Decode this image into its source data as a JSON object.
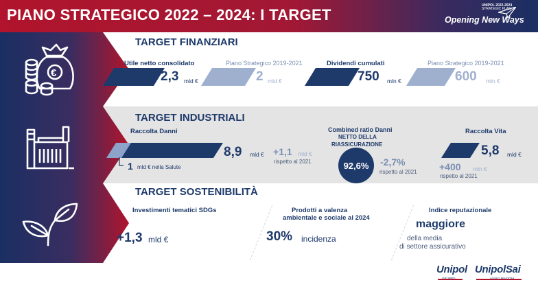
{
  "header": {
    "title": "PIANO STRATEGICO 2022 – 2024: I TARGET",
    "brand_small_1": "UNIPOL 2022-2024",
    "brand_small_2": "STRATEGIC PLAN",
    "brand_tagline": "Opening New Ways"
  },
  "finanziari": {
    "title": "TARGET FINANZIARI",
    "icon": "money-bag-icon",
    "utile_label": "Utile netto consolidato",
    "utile_value": "2,3",
    "utile_unit": "mld €",
    "utile_prev_label": "Piano Strategico 2019-2021",
    "utile_prev_value": "2",
    "utile_prev_unit": "mld €",
    "dividendi_label": "Dividendi cumulati",
    "dividendi_value": "750",
    "dividendi_unit": "mln €",
    "dividendi_prev_label": "Piano Strategico 2019-2021",
    "dividendi_prev_value": "600",
    "dividendi_prev_unit": "mln €"
  },
  "industriali": {
    "title": "TARGET INDUSTRIALI",
    "icon": "factory-icon",
    "danni_label": "Raccolta Danni",
    "danni_value": "8,9",
    "danni_unit": "mld €",
    "danni_delta": "+1,1",
    "danni_delta_unit": "mld €",
    "danni_delta_note": "rispetto al 2021",
    "salute_value": "1",
    "salute_unit": "mld € nella Salute",
    "cr_label_1": "Combined ratio Danni",
    "cr_label_2": "NETTO DELLA",
    "cr_label_3": "RIASSICURAZIONE",
    "cr_value": "92,6%",
    "cr_delta": "-2,7%",
    "cr_delta_note": "rispetto al 2021",
    "vita_label": "Raccolta Vita",
    "vita_value": "5,8",
    "vita_unit": "mld €",
    "vita_delta": "+400",
    "vita_delta_unit": "mln €",
    "vita_delta_note": "rispetto al 2021"
  },
  "sostenibilita": {
    "title": "TARGET SOSTENIBILITÀ",
    "icon": "leaf-icon",
    "inv_label": "Investimenti tematici SDGs",
    "inv_value": "+1,3",
    "inv_unit": "mld €",
    "prod_label_1": "Prodotti a valenza",
    "prod_label_2": "ambientale e sociale al 2024",
    "prod_value": "30%",
    "prod_unit": "incidenza",
    "rep_label": "Indice reputazionale",
    "rep_value": "maggiore",
    "rep_note_1": "della media",
    "rep_note_2": "di settore assicurativo"
  },
  "logos": {
    "unipol": "Unipol",
    "unipol_sub": "GRUPPO",
    "unipolsai": "UnipolSai",
    "unipolsai_sub": "ASSICURAZIONI"
  },
  "colors": {
    "navy": "#1e3a6b",
    "red": "#b1142c",
    "light_blue": "#9fb0cf"
  }
}
